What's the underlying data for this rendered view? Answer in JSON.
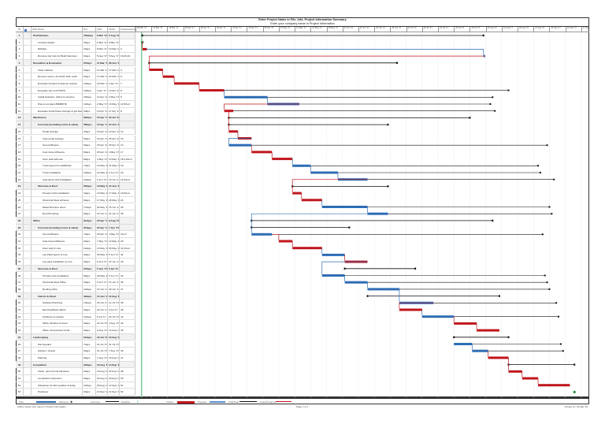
{
  "header": {
    "title": "Enter Project Name in File, Info, Project Information Summary",
    "subtitle": "Enter your company name in Project Information"
  },
  "columns": {
    "id": "ID",
    "name": "Task Name",
    "duration": "Dur",
    "start": "Start",
    "finish": "Finish",
    "predecessors": "Predecessors"
  },
  "timescale": {
    "labels": [
      "05 Mar '17",
      "12 Mar '17",
      "19 Mar '17",
      "26 Mar '17",
      "02 Apr '17",
      "09 Apr '17",
      "16 Apr '17",
      "23 Apr '17",
      "30 Apr '17",
      "07 May '17",
      "14 May '17",
      "21 May '17",
      "28 May '17",
      "04 Jun '17",
      "11 Jun '17",
      "18 Jun '17",
      "25 Jun '17",
      "02 Jul '17",
      "09 Jul '17",
      "16 Jul '17",
      "23 Jul '17",
      "30 Jul '17",
      "06 Aug '17",
      "13 Aug '17",
      "20 Aug '17",
      "27 Aug '17",
      "03 Sep '17",
      "10 Sep '17",
      "17 Sep '17"
    ]
  },
  "colors": {
    "critical": "#c0161c",
    "task": "#2f6db5",
    "summary": "#111111",
    "float": "#111111",
    "milestone": "#1a8a3a",
    "today": "#7fc89a"
  },
  "tasks": [
    {
      "id": "1",
      "name": "Preliminaries",
      "dur": "150days",
      "start": "8 Mar '17",
      "finish": "5 Aug '17",
      "pred": "",
      "type": "summary",
      "level": 0
    },
    {
      "id": "2",
      "name": "Contract Award",
      "dur": "0days",
      "start": "8 Mar '17",
      "finish": "8 Mar '17",
      "pred": "",
      "type": "milestone",
      "level": 1
    },
    {
      "id": "3",
      "name": "Mobilise",
      "dur": "3days",
      "start": "8 Mar '17",
      "finish": "10 Mar '17",
      "pred": "2",
      "type": "critical",
      "level": 1
    },
    {
      "id": "4",
      "name": "Remove site huts for Build handover",
      "dur": "0days",
      "start": "5 Aug '17",
      "finish": "5 Aug '17",
      "pred": "19,20,22",
      "type": "task",
      "level": 1
    },
    {
      "id": "5",
      "name": "Demolition & Excavation",
      "dur": "57days",
      "start": "11 Mar '17",
      "finish": "28 Jun '17",
      "pred": "",
      "type": "summary",
      "level": 0
    },
    {
      "id": "6",
      "name": "Clear Cabinet",
      "dur": "6days",
      "start": "11 Mar '17",
      "finish": "17 Mar '17",
      "pred": "3",
      "type": "critical",
      "level": 1
    },
    {
      "id": "7",
      "name": "Remove stores, demolish slab, build",
      "dur": "5days",
      "start": "17 Mar '17",
      "finish": "22 Mar '17",
      "pred": "6",
      "type": "critical",
      "level": 1
    },
    {
      "id": "8",
      "name": "Excavate footprint & dispose surplus",
      "dur": "10days",
      "start": "22 Mar '17",
      "finish": "2 Apr '17",
      "pred": "7",
      "type": "critical",
      "level": 1
    },
    {
      "id": "9",
      "name": "Excavate site runs/TS/FS",
      "dur": "10days",
      "start": "2 Apr '17",
      "finish": "13 Apr '17",
      "pred": "8",
      "type": "critical",
      "level": 1,
      "float_to": "16 Aug '17"
    },
    {
      "id": "10",
      "name": "Install hoarders, drains & services",
      "dur": "15days",
      "start": "13 Apr '17",
      "finish": "2 May '17",
      "pred": "9",
      "type": "task",
      "level": 1,
      "float_to": "9 Aug '17"
    },
    {
      "id": "11",
      "name": "Pipe & compact ###### fill",
      "dur": "12days",
      "start": "2 May '17",
      "finish": "16 May '17",
      "pred": "10,SS+2",
      "type": "task",
      "level": 1,
      "float_to": "8 Aug '17"
    },
    {
      "id": "12",
      "name": "Excavate portal frame footings & grd beam",
      "dur": "3days",
      "start": "13 Apr '17",
      "finish": "17 Apr '17",
      "pred": "8",
      "type": "critical",
      "level": 1,
      "float_to": "10 Aug '17"
    },
    {
      "id": "13",
      "name": "Warehouse",
      "dur": "90days",
      "start": "15 Apr '17",
      "finish": "30 Jul '17",
      "pred": "",
      "type": "summary",
      "level": 0
    },
    {
      "id": "14",
      "name": "Concrete (including forms & rebar)",
      "dur": "58days",
      "start": "15 Apr '17",
      "finish": "24 Jun '17",
      "pred": "",
      "type": "summary",
      "level": 1
    },
    {
      "id": "15",
      "name": "Portal footings",
      "dur": "3days",
      "start": "15 Apr '17",
      "finish": "19 Apr '17",
      "pred": "12",
      "type": "critical",
      "level": 2
    },
    {
      "id": "16",
      "name": "Cast portal footings",
      "dur": "5days",
      "start": "19 Apr '17",
      "finish": "25 Apr '17",
      "pred": "15",
      "type": "critical",
      "level": 2
    },
    {
      "id": "17",
      "name": "Ground Beams",
      "dur": "8days",
      "start": "15 Apr '17",
      "finish": "25 Apr '17",
      "pred": "12",
      "type": "task",
      "level": 2,
      "float_to": "2 Sep '17"
    },
    {
      "id": "18",
      "name": "Cast Ground Beams",
      "dur": "8days",
      "start": "25 Apr '17",
      "finish": "4 May '17",
      "pred": "17",
      "type": "critical",
      "level": 2
    },
    {
      "id": "19",
      "name": "Floor slab w/house",
      "dur": "8days",
      "start": "4 May '17",
      "finish": "13 May '17",
      "pred": "18,4,SS+2",
      "type": "critical",
      "level": 2
    },
    {
      "id": "20",
      "name": "Truck layout & Lead/Rebar",
      "dur": "7days",
      "start": "13 May '17",
      "finish": "21 May '17",
      "pred": "19",
      "type": "task",
      "level": 2,
      "float_to": "29 Aug '17"
    },
    {
      "id": "21",
      "name": "Truck Installation",
      "dur": "10days",
      "start": "21 May '17",
      "finish": "2 Jun '17",
      "pred": "20",
      "type": "task",
      "level": 2,
      "float_to": "30 Aug '17"
    },
    {
      "id": "22",
      "name": "Cast Apron and Installation",
      "dur": "12days",
      "start": "2 Jun '17",
      "finish": "15 Jun '17",
      "pred": "21,SS+2",
      "type": "task",
      "level": 2,
      "float_to": "5 Sep '17"
    },
    {
      "id": "23",
      "name": "Structure & Roof",
      "dur": "35days",
      "start": "13 May '17",
      "finish": "24 Jun '17",
      "pred": "",
      "type": "summary",
      "level": 1
    },
    {
      "id": "24",
      "name": "Precast Units Installation",
      "dur": "4days",
      "start": "13 May '17",
      "finish": "17 May '17",
      "pred": "19,SS+2",
      "type": "critical",
      "level": 2
    },
    {
      "id": "25",
      "name": "Structural Steel w/house",
      "dur": "8days",
      "start": "17 May '17",
      "finish": "26 May '17",
      "pred": "24",
      "type": "critical",
      "level": 2
    },
    {
      "id": "26",
      "name": "Metal Structure doors",
      "dur": "17days",
      "start": "26 May '17",
      "finish": "15 Jun '17",
      "pred": "25",
      "type": "task",
      "level": 2,
      "float_to": "3 Sep '17"
    },
    {
      "id": "27",
      "name": "Roof Plumbing",
      "dur": "8days",
      "start": "15 Jun '17",
      "finish": "24 Jun '17",
      "pred": "26",
      "type": "task",
      "level": 2,
      "float_to": "4 Sep '17"
    },
    {
      "id": "28",
      "name": "Office",
      "dur": "91days",
      "start": "25 Apr '17",
      "finish": "9 Aug '17",
      "pred": "",
      "type": "summary",
      "level": 0
    },
    {
      "id": "29",
      "name": "Concrete (including forms & rebar)",
      "dur": "37days",
      "start": "25 Apr '17",
      "finish": "7 Jun '17",
      "pred": "",
      "type": "summary",
      "level": 1
    },
    {
      "id": "30",
      "name": "Ground Beams",
      "dur": "7days",
      "start": "25 Apr '17",
      "finish": "4 May '17",
      "pred": "16,17",
      "type": "task",
      "level": 2,
      "float_to": "31 Aug '17"
    },
    {
      "id": "31",
      "name": "Cast Ground Beams",
      "dur": "6days",
      "start": "7 May '17",
      "finish": "13 May '17",
      "pred": "30",
      "type": "critical",
      "level": 2
    },
    {
      "id": "32",
      "name": "Floor slab & cure",
      "dur": "11days",
      "start": "13 May '17",
      "finish": "26 May '17",
      "pred": "31,SS+2",
      "type": "critical",
      "level": 2
    },
    {
      "id": "33",
      "name": "Lay Pack layout & cure",
      "dur": "9days",
      "start": "26 May '17",
      "finish": "5 Jun '17",
      "pred": "32",
      "type": "task",
      "level": 2
    },
    {
      "id": "34",
      "name": "Lay pack installation & cure",
      "dur": "9days",
      "start": "5 Jun '17",
      "finish": "15 Jun '17",
      "pred": "33",
      "type": "critical",
      "level": 2
    },
    {
      "id": "35",
      "name": "Structure & Roof",
      "dur": "27days",
      "start": "5 Jun '17",
      "finish": "6 Jul '17",
      "pred": "",
      "type": "summary",
      "level": 1
    },
    {
      "id": "36",
      "name": "Precast units installation",
      "dur": "8days",
      "start": "26 May '17",
      "finish": "5 Jun '17",
      "pred": "32",
      "type": "task",
      "level": 2,
      "float_to": "1 Sep '17"
    },
    {
      "id": "37",
      "name": "Structural Steel Office",
      "dur": "9days",
      "start": "5 Jun '17",
      "finish": "15 Jun '17",
      "pred": "36",
      "type": "task",
      "level": 2,
      "float_to": "2 Sep '17"
    },
    {
      "id": "38",
      "name": "Roofing office",
      "dur": "12days",
      "start": "15 Jun '17",
      "finish": "29 Jun '17",
      "pred": "37",
      "type": "task",
      "level": 2,
      "float_to": "3 Sep '17"
    },
    {
      "id": "39",
      "name": "Interior & Fitout",
      "dur": "46days",
      "start": "15 Jun '17",
      "finish": "12 Aug '17",
      "pred": "",
      "type": "summary",
      "level": 1
    },
    {
      "id": "40",
      "name": "Sanitary Plumbing",
      "dur": "13days",
      "start": "29 Jun '17",
      "finish": "14 Jul '17",
      "pred": "38",
      "type": "task",
      "level": 2,
      "float_to": "6 Sep '17"
    },
    {
      "id": "41",
      "name": "Electrical/data cabled",
      "dur": "9days",
      "start": "29 Jun '17",
      "finish": "9 Jul '17",
      "pred": "38",
      "type": "critical",
      "level": 2
    },
    {
      "id": "42",
      "name": "Partitions & carpets",
      "dur": "12days",
      "start": "9 Jul '17",
      "finish": "23 Jul '17",
      "pred": "41",
      "type": "task",
      "level": 2,
      "float_to": "7 Sep '17"
    },
    {
      "id": "43",
      "name": "Office Finishes & doors",
      "dur": "9days",
      "start": "23 Jul '17",
      "finish": "2 Aug '17",
      "pred": "42",
      "type": "critical",
      "level": 2
    },
    {
      "id": "44",
      "name": "Office Inmprections Final",
      "dur": "9days",
      "start": "2 Aug '17",
      "finish": "12 Aug '17",
      "pred": "43",
      "type": "critical",
      "level": 2
    },
    {
      "id": "45",
      "name": "Landscaping",
      "dur": "21days",
      "start": "23 Jul '17",
      "finish": "16 Aug '17",
      "pred": "",
      "type": "summary",
      "level": 0
    },
    {
      "id": "46",
      "name": "Site Seeded",
      "dur": "7days",
      "start": "23 Jul '17",
      "finish": "31 Jul '17",
      "pred": "",
      "type": "task",
      "level": 1,
      "float_to": "8 Sep '17"
    },
    {
      "id": "47",
      "name": "Garden / Gravel",
      "dur": "6days",
      "start": "31 Jul '17",
      "finish": "7 Aug '17",
      "pred": "46",
      "type": "task",
      "level": 1,
      "float_to": "9 Sep '17"
    },
    {
      "id": "48",
      "name": "Planting",
      "dur": "8days",
      "start": "7 Aug '17",
      "finish": "16 Aug '17",
      "pred": "47",
      "type": "critical",
      "level": 1
    },
    {
      "id": "49",
      "name": "Completion",
      "dur": "25days",
      "start": "16 Aug '17",
      "finish": "14 Sep '17",
      "pred": "",
      "type": "summary",
      "level": 0
    },
    {
      "id": "50",
      "name": "Clean, upon formal handover",
      "dur": "6days",
      "start": "16 Aug '17",
      "finish": "22 Aug '17",
      "pred": "48",
      "type": "critical",
      "level": 1
    },
    {
      "id": "51",
      "name": "Completion inspection",
      "dur": "6days",
      "start": "22 Aug '17",
      "finish": "29 Aug '17",
      "pred": "50",
      "type": "critical",
      "level": 1
    },
    {
      "id": "52",
      "name": "Allowance for Wet weather & delay",
      "dur": "12days",
      "start": "29 Aug '17",
      "finish": "12 Sep '17",
      "pred": "51",
      "type": "critical",
      "level": 1
    },
    {
      "id": "53",
      "name": "Handover",
      "dur": "0days",
      "start": "14 Sep '17",
      "finish": "14 Sep '17",
      "pred": "52",
      "type": "milestone",
      "level": 1
    }
  ],
  "legend": {
    "task": "Task",
    "milestone": "Milestone",
    "summary": "Summary",
    "deadline": "Deadline",
    "critical": "Critical",
    "progress": "Progress",
    "total_float": "Total Float",
    "free_float": "Critical Progress"
  },
  "footer": {
    "author": "Author: Enter your name in Project Information",
    "page": "Page 1 of 1",
    "printed": "Printed on: 20 Mar '16"
  }
}
